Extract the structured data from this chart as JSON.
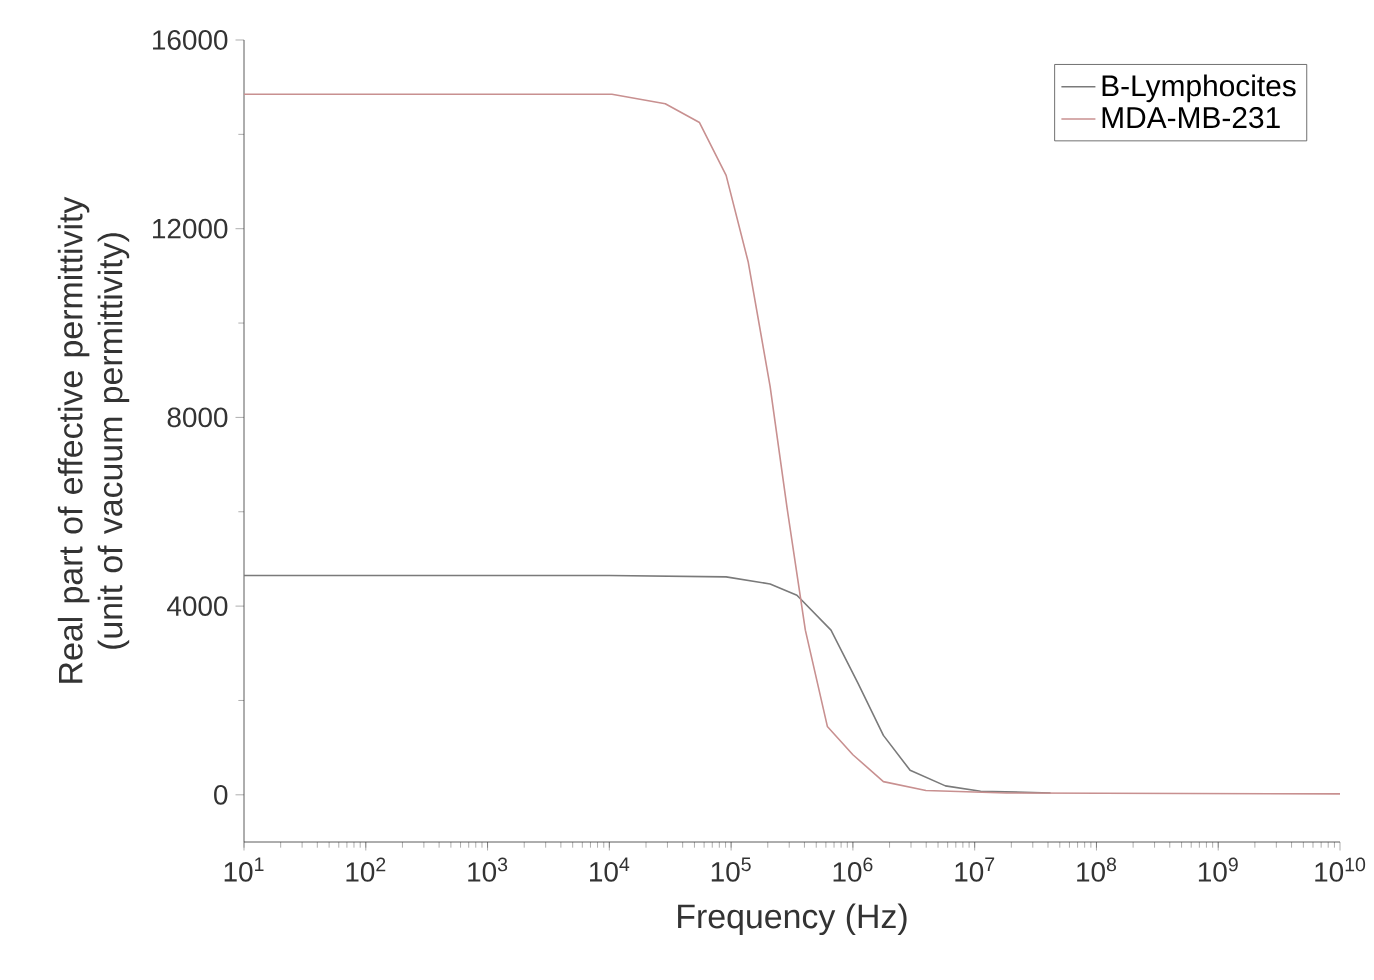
{
  "chart_data": {
    "type": "line",
    "xlabel": "Frequency (Hz)",
    "ylabel": "Real part of effective permittivity (unit of vacuum permittivity)",
    "log": "x",
    "xlim": [
      10,
      10000000000
    ],
    "ylim": [
      -1000,
      16000
    ],
    "xticks": [
      {
        "value": 10,
        "label": "10$^{1}$"
      },
      {
        "value": 100,
        "label": "10$^{2}$"
      },
      {
        "value": 1000,
        "label": "10$^{3}$"
      },
      {
        "value": 10000,
        "label": "10$^{4}$"
      },
      {
        "value": 100000,
        "label": "10$^{5}$"
      },
      {
        "value": 1000000,
        "label": "10$^{6}$"
      },
      {
        "value": 10000000,
        "label": "10$^{7}$"
      },
      {
        "value": 100000000,
        "label": "10$^{8}$"
      },
      {
        "value": 1000000000,
        "label": "10$^{9}$"
      },
      {
        "value": 10000000000,
        "label": "10$^{10}$"
      }
    ],
    "yticks": [
      0,
      4000,
      8000,
      12000,
      16000
    ],
    "grid": false,
    "legend": "top right",
    "marker": "none",
    "line_style": "solid",
    "series": [
      {
        "name": "B-Lymphocites",
        "color": "#7a7a7a",
        "x": [
          10,
          10000,
          91000,
          209000,
          347000,
          661000,
          1100000,
          1780000,
          2950000,
          5750000,
          11200000,
          42000000
        ],
        "values": [
          4650,
          4650,
          4620,
          4470,
          4230,
          3490,
          2370,
          1260,
          520,
          190,
          75,
          40
        ]
      },
      {
        "name": "MDA-MB-231",
        "color": "#c89090",
        "x": [
          10,
          10500,
          28800,
          55000,
          91000,
          138000,
          209000,
          288000,
          407000,
          617000,
          1000000,
          1780000,
          3980000,
          18200000,
          10000000000
        ],
        "values": [
          14850,
          14850,
          14650,
          14250,
          13130,
          11300,
          8660,
          6080,
          3490,
          1450,
          850,
          280,
          90,
          40,
          20
        ]
      }
    ]
  }
}
